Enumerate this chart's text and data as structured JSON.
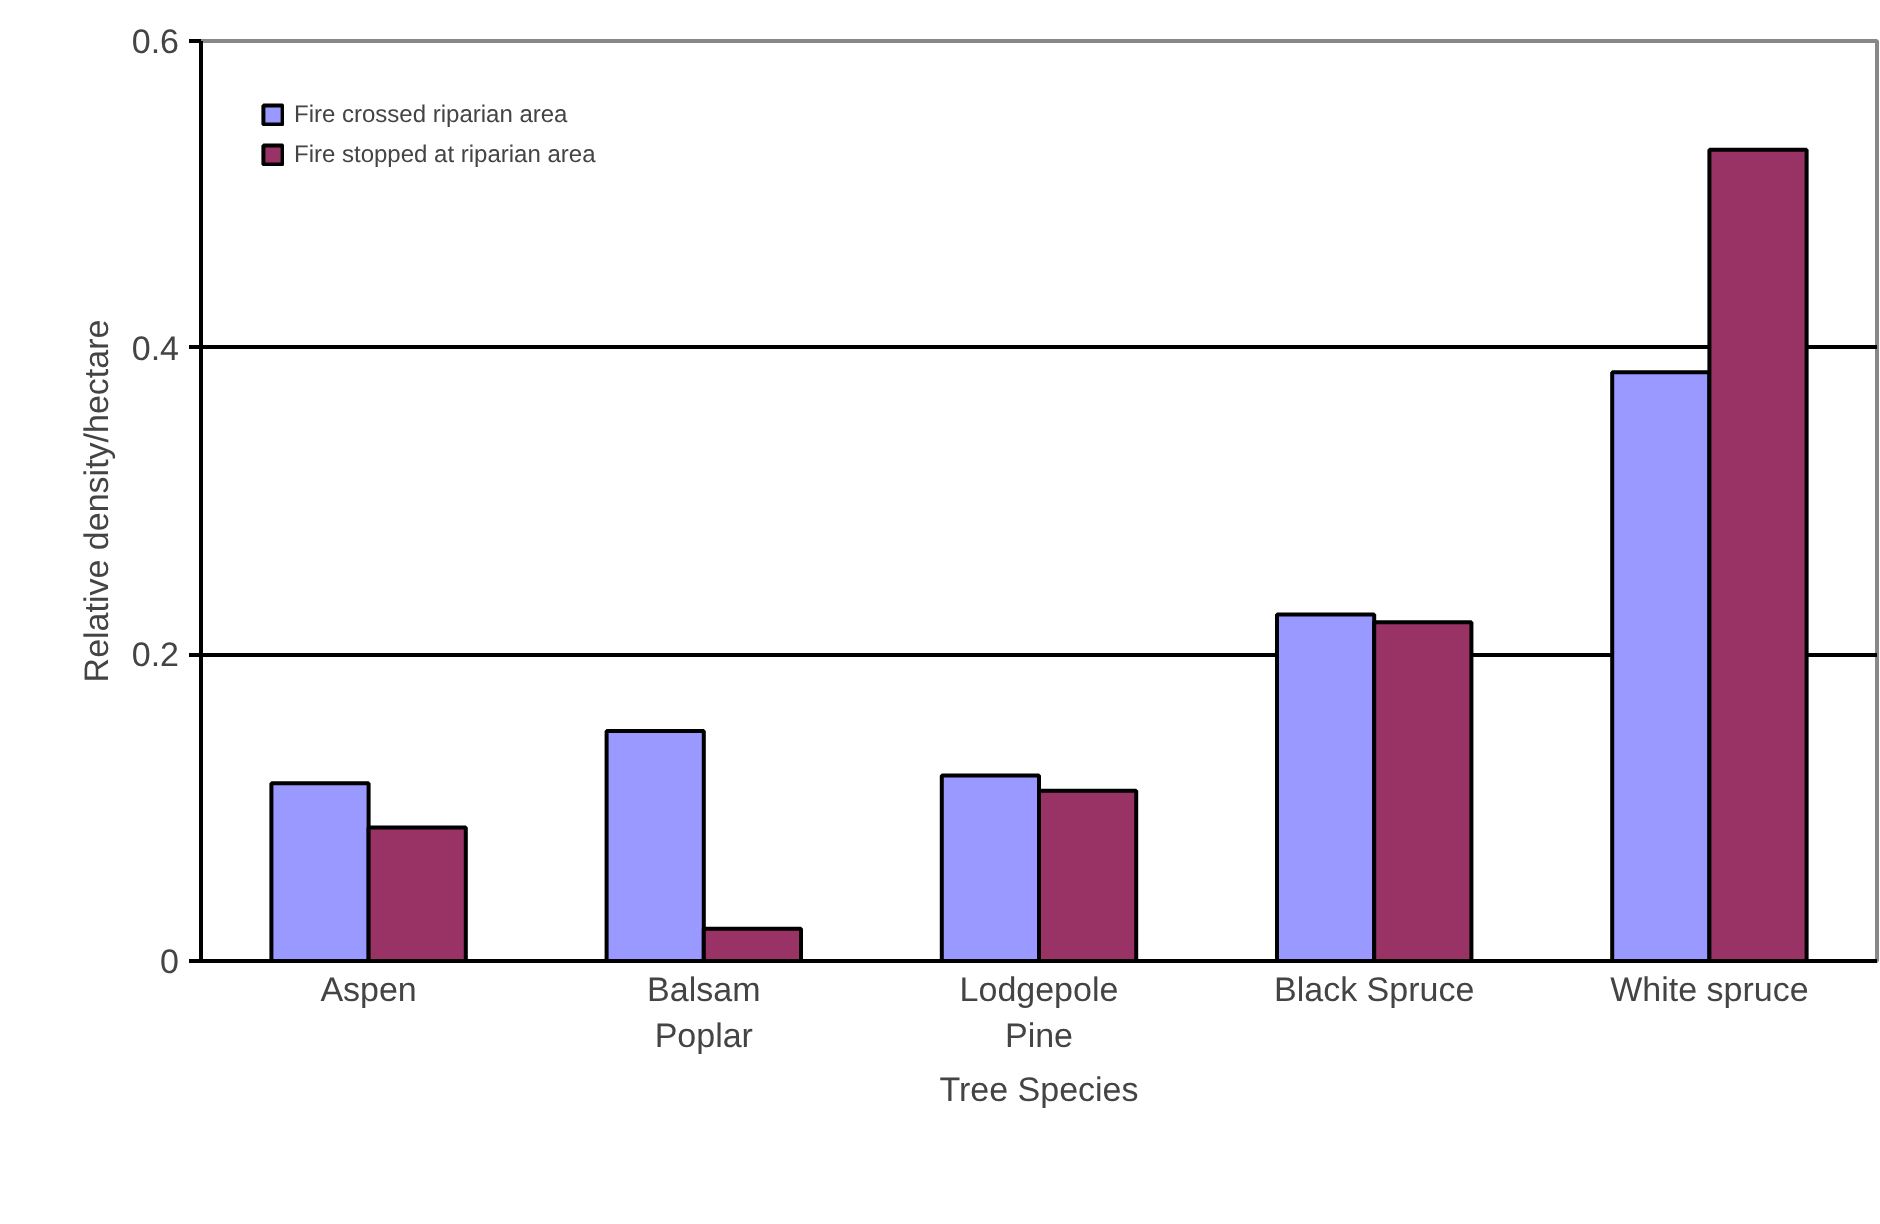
{
  "chart_data": {
    "type": "bar",
    "xlabel": "Tree Species",
    "ylabel": "Relative density/hectare",
    "categories": [
      "Aspen",
      "Balsam\nPoplar",
      "Lodgepole\nPine",
      "Black Spruce",
      "White spruce"
    ],
    "series": [
      {
        "name": "Fire crossed riparian area",
        "color": "#9999ff",
        "values": [
          0.116,
          0.15,
          0.121,
          0.226,
          0.384
        ]
      },
      {
        "name": "Fire stopped at riparian area",
        "color": "#993366",
        "values": [
          0.087,
          0.021,
          0.111,
          0.221,
          0.529
        ]
      }
    ],
    "ylim": [
      0,
      0.6
    ],
    "yticks": [
      0,
      0.2,
      0.4,
      0.6
    ],
    "grid": "y",
    "legend": "top left"
  }
}
